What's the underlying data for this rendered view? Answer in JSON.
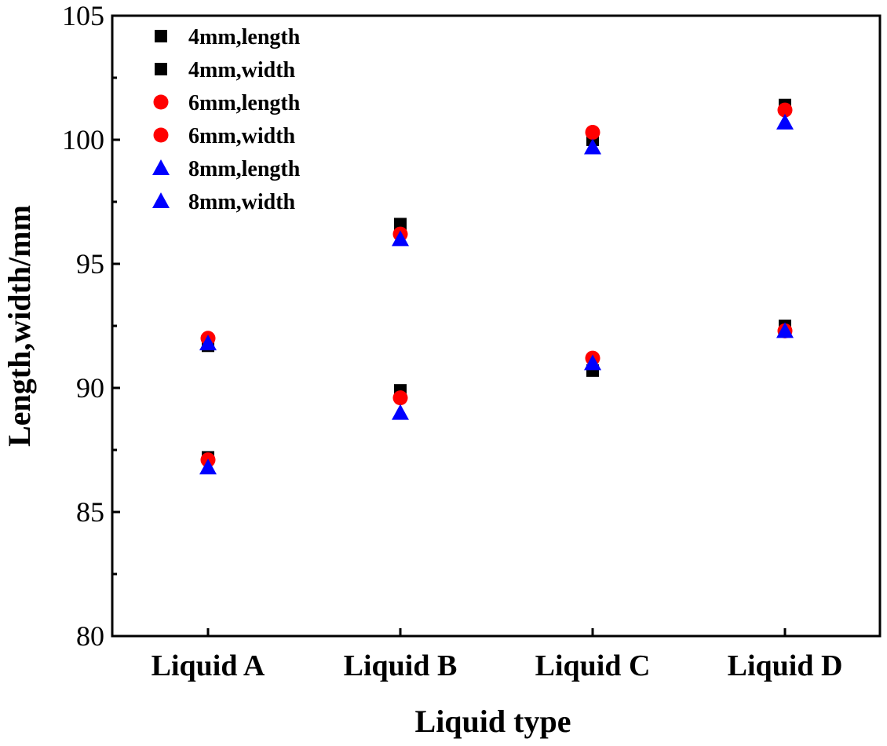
{
  "chart_data": {
    "type": "scatter",
    "title": "",
    "xlabel": "Liquid type",
    "ylabel": "Length,width/mm",
    "categories": [
      "Liquid A",
      "Liquid B",
      "Liquid C",
      "Liquid D"
    ],
    "ylim": [
      80,
      105
    ],
    "yticks": [
      80,
      85,
      90,
      95,
      100,
      105
    ],
    "ytick_labels": [
      "80",
      "85",
      "90",
      "95",
      "100",
      "105"
    ],
    "grid": false,
    "legend_position": "top-left",
    "series": [
      {
        "name": "4mm,length",
        "marker": "square",
        "color": "#000000",
        "values": [
          91.7,
          96.6,
          100.0,
          101.4
        ]
      },
      {
        "name": "4mm,width",
        "marker": "square",
        "color": "#000000",
        "values": [
          87.2,
          89.9,
          90.7,
          92.5
        ]
      },
      {
        "name": "6mm,length",
        "marker": "circle",
        "color": "#ff0000",
        "values": [
          92.0,
          96.2,
          100.3,
          101.2
        ]
      },
      {
        "name": "6mm,width",
        "marker": "circle",
        "color": "#ff0000",
        "values": [
          87.1,
          89.6,
          91.2,
          92.3
        ]
      },
      {
        "name": "8mm,length",
        "marker": "triangle",
        "color": "#0000ff",
        "values": [
          91.8,
          96.0,
          99.7,
          100.7
        ]
      },
      {
        "name": "8mm,width",
        "marker": "triangle",
        "color": "#0000ff",
        "values": [
          86.8,
          89.0,
          91.0,
          92.3
        ]
      }
    ]
  }
}
